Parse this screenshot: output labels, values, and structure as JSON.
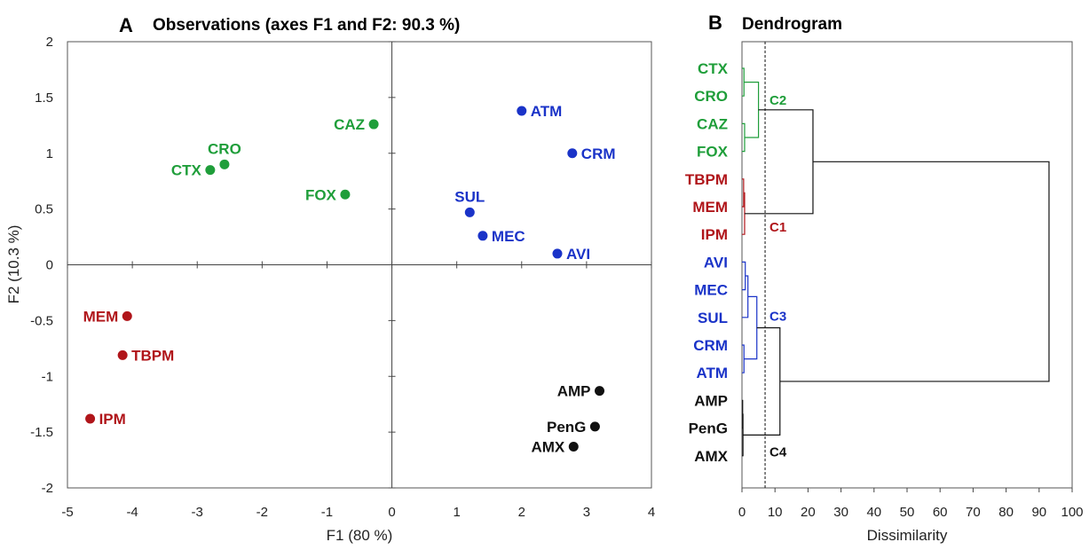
{
  "colors": {
    "C1": "#b0151a",
    "C2": "#1f9e3a",
    "C3": "#1a33c8",
    "C4": "#111111",
    "axis": "#444444",
    "frame": "#555555"
  },
  "chart_data": [
    {
      "type": "scatter",
      "panel_letter": "A",
      "title": "Observations (axes F1 and F2: 90.3 %)",
      "xlabel": "F1 (80 %)",
      "ylabel": "F2 (10.3 %)",
      "xlim": [
        -5,
        4
      ],
      "ylim": [
        -2,
        2
      ],
      "xticks": [
        "-5",
        "-4",
        "-3",
        "-2",
        "-1",
        "0",
        "1",
        "2",
        "3",
        "4"
      ],
      "yticks": [
        "-2",
        "-1.5",
        "-1",
        "-0.5",
        "0",
        "0.5",
        "1",
        "1.5",
        "2"
      ],
      "grid": false,
      "points": [
        {
          "label": "CTX",
          "x": -2.8,
          "y": 0.85,
          "group": "C2",
          "label_side": "left"
        },
        {
          "label": "CRO",
          "x": -2.58,
          "y": 0.9,
          "group": "C2",
          "label_side": "above"
        },
        {
          "label": "CAZ",
          "x": -0.28,
          "y": 1.26,
          "group": "C2",
          "label_side": "left"
        },
        {
          "label": "FOX",
          "x": -0.72,
          "y": 0.63,
          "group": "C2",
          "label_side": "left"
        },
        {
          "label": "ATM",
          "x": 2.0,
          "y": 1.38,
          "group": "C3",
          "label_side": "right"
        },
        {
          "label": "CRM",
          "x": 2.78,
          "y": 1.0,
          "group": "C3",
          "label_side": "right"
        },
        {
          "label": "SUL",
          "x": 1.2,
          "y": 0.47,
          "group": "C3",
          "label_side": "above"
        },
        {
          "label": "MEC",
          "x": 1.4,
          "y": 0.26,
          "group": "C3",
          "label_side": "right"
        },
        {
          "label": "AVI",
          "x": 2.55,
          "y": 0.1,
          "group": "C3",
          "label_side": "right"
        },
        {
          "label": "MEM",
          "x": -4.08,
          "y": -0.46,
          "group": "C1",
          "label_side": "left"
        },
        {
          "label": "TBPM",
          "x": -4.15,
          "y": -0.81,
          "group": "C1",
          "label_side": "right"
        },
        {
          "label": "IPM",
          "x": -4.65,
          "y": -1.38,
          "group": "C1",
          "label_side": "right"
        },
        {
          "label": "AMP",
          "x": 3.2,
          "y": -1.13,
          "group": "C4",
          "label_side": "left"
        },
        {
          "label": "PenG",
          "x": 3.13,
          "y": -1.45,
          "group": "C4",
          "label_side": "left"
        },
        {
          "label": "AMX",
          "x": 2.8,
          "y": -1.63,
          "group": "C4",
          "label_side": "left"
        }
      ]
    },
    {
      "type": "dendrogram",
      "panel_letter": "B",
      "title": "Dendrogram",
      "xlabel": "Dissimilarity",
      "xlim": [
        0,
        100
      ],
      "xticks": [
        "0",
        "10",
        "20",
        "30",
        "40",
        "50",
        "60",
        "70",
        "80",
        "90",
        "100"
      ],
      "truncation_line": 7,
      "leaves": [
        {
          "label": "CTX",
          "group": "C2"
        },
        {
          "label": "CRO",
          "group": "C2"
        },
        {
          "label": "CAZ",
          "group": "C2"
        },
        {
          "label": "FOX",
          "group": "C2"
        },
        {
          "label": "TBPM",
          "group": "C1"
        },
        {
          "label": "MEM",
          "group": "C1"
        },
        {
          "label": "IPM",
          "group": "C1"
        },
        {
          "label": "AVI",
          "group": "C3"
        },
        {
          "label": "MEC",
          "group": "C3"
        },
        {
          "label": "SUL",
          "group": "C3"
        },
        {
          "label": "CRM",
          "group": "C3"
        },
        {
          "label": "ATM",
          "group": "C3"
        },
        {
          "label": "AMP",
          "group": "C4"
        },
        {
          "label": "PenG",
          "group": "C4"
        },
        {
          "label": "AMX",
          "group": "C4"
        }
      ],
      "merges": [
        {
          "id": "m1",
          "a": "CTX",
          "b": "CRO",
          "height": 0.6,
          "group": "C2"
        },
        {
          "id": "m2",
          "a": "CAZ",
          "b": "FOX",
          "height": 0.8,
          "group": "C2"
        },
        {
          "id": "m3",
          "a": "m1",
          "b": "m2",
          "height": 5.0,
          "group": "C2"
        },
        {
          "id": "m4",
          "a": "TBPM",
          "b": "MEM",
          "height": 0.5,
          "group": "C1"
        },
        {
          "id": "m5",
          "a": "m4",
          "b": "IPM",
          "height": 0.8,
          "group": "C1"
        },
        {
          "id": "m6",
          "a": "AVI",
          "b": "MEC",
          "height": 1.0,
          "group": "C3"
        },
        {
          "id": "m7",
          "a": "m6",
          "b": "SUL",
          "height": 1.8,
          "group": "C3"
        },
        {
          "id": "m8",
          "a": "CRM",
          "b": "ATM",
          "height": 0.6,
          "group": "C3"
        },
        {
          "id": "m9",
          "a": "m7",
          "b": "m8",
          "height": 4.5,
          "group": "C3"
        },
        {
          "id": "m10",
          "a": "AMP",
          "b": "PenG",
          "height": 0.2,
          "group": "C4"
        },
        {
          "id": "m11",
          "a": "m10",
          "b": "AMX",
          "height": 0.3,
          "group": "C4"
        },
        {
          "id": "m12",
          "a": "m3",
          "b": "m5",
          "height": 21.5,
          "group": "link"
        },
        {
          "id": "m13",
          "a": "m9",
          "b": "m11",
          "height": 11.5,
          "group": "link"
        },
        {
          "id": "m14",
          "a": "m12",
          "b": "m13",
          "height": 93,
          "group": "link"
        }
      ],
      "cluster_labels": [
        {
          "label": "C2",
          "group": "C2"
        },
        {
          "label": "C1",
          "group": "C1"
        },
        {
          "label": "C3",
          "group": "C3"
        },
        {
          "label": "C4",
          "group": "C4"
        }
      ]
    }
  ]
}
